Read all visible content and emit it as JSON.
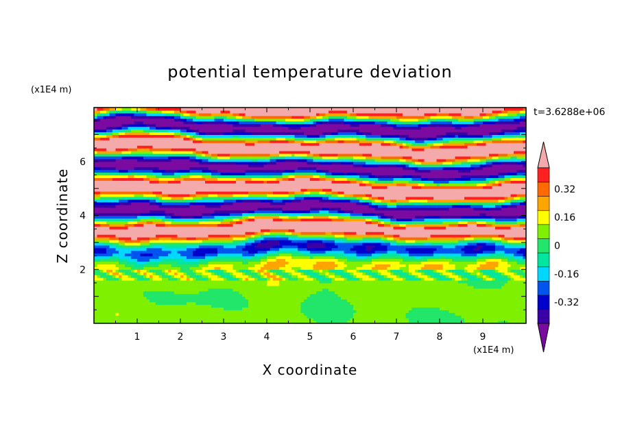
{
  "chart_data": {
    "type": "heatmap",
    "title": "potential temperature deviation",
    "xlabel": "X coordinate",
    "ylabel": "Z coordinate",
    "x_unit": "(x1E4 m)",
    "z_unit": "(x1E4 m)",
    "time_label": "t=3.6288e+06",
    "xlim": [
      0,
      10
    ],
    "ylim": [
      0,
      8
    ],
    "x_ticks": [
      "1",
      "2",
      "3",
      "4",
      "5",
      "6",
      "7",
      "8",
      "9"
    ],
    "z_ticks": [
      "2",
      "4",
      "6"
    ],
    "colorbar": {
      "levels": [
        -0.48,
        -0.4,
        -0.32,
        -0.24,
        -0.16,
        -0.08,
        0,
        0.08,
        0.16,
        0.24,
        0.32,
        0.4,
        0.48
      ],
      "colors": [
        "#7a0aa0",
        "#3a00a6",
        "#0000cc",
        "#0055ee",
        "#00d8ff",
        "#00e6a0",
        "#22e66a",
        "#7ef000",
        "#ffff00",
        "#ffa500",
        "#ff6a00",
        "#ff2020",
        "#f4aaaa"
      ],
      "labels": [
        "0.32",
        "0.16",
        "0",
        "-0.16",
        "-0.32"
      ],
      "extend": "both"
    }
  }
}
